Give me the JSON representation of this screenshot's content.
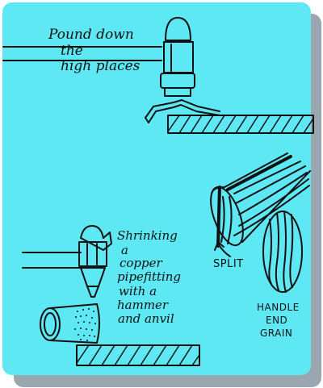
{
  "colors": {
    "background": "#5ee8f4",
    "ink": "#111111",
    "shadow": "#7a8a96"
  },
  "labels": {
    "pound": [
      "Pound down",
      "the",
      "high places"
    ],
    "shrink": [
      "Shrinking",
      "a",
      "copper",
      "pipefitting",
      "with a",
      "hammer",
      "and anvil"
    ],
    "split": "SPLIT",
    "grain": [
      "HANDLE",
      "END",
      "GRAIN"
    ]
  },
  "icons": [
    "hammer-icon",
    "anvil-icon",
    "sheet-metal-icon",
    "handle-icon",
    "end-grain-icon",
    "pipe-fitting-icon"
  ]
}
